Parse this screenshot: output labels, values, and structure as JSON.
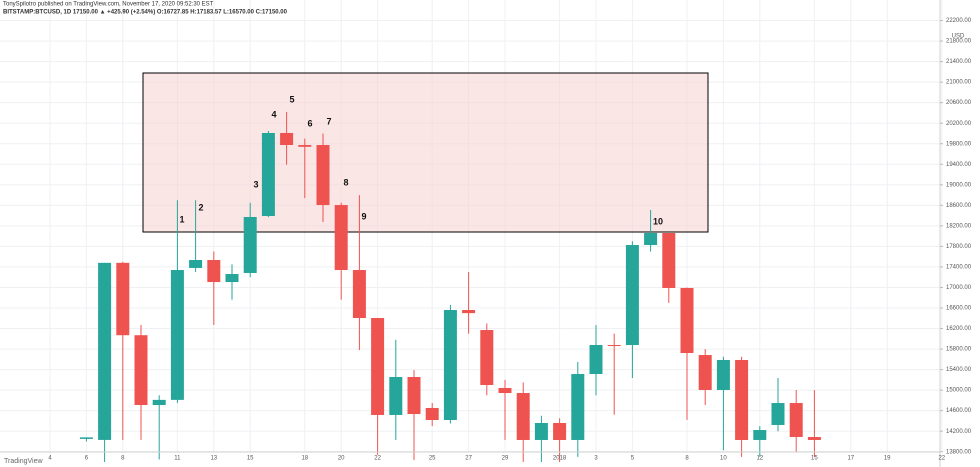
{
  "header": {
    "author": "TonySpilotro published on TradingView.com, November 17, 2020 09:52:30 EST",
    "symbol": "BITSTAMP:BTCUSD, 1D 17150.00 ▲ +425.90 (+2.54%) O:16727.85 H:17183.57 L:16570.00 C:17150.00"
  },
  "footer": {
    "brand": "TradingView"
  },
  "chart_data": {
    "type": "candlestick",
    "currency": "USD",
    "categories": [
      "4",
      null,
      "6",
      null,
      "8",
      null,
      null,
      "11",
      null,
      "13",
      null,
      "15",
      null,
      null,
      "18",
      null,
      "20",
      null,
      "22",
      null,
      null,
      "25",
      null,
      "27",
      null,
      "29",
      null,
      null,
      "2018",
      null,
      "3",
      null,
      "5",
      null,
      null,
      "8",
      null,
      "10",
      null,
      "12",
      null,
      null,
      "15",
      null,
      "17",
      null,
      "19",
      null,
      null,
      "22"
    ],
    "open": [
      null,
      null,
      14050,
      14030,
      17480,
      16070,
      14710,
      14810,
      17380,
      17535,
      17106,
      17282,
      18392,
      20009,
      19775,
      19775,
      18606,
      17340,
      16405,
      14516,
      15256,
      14652,
      14418,
      16561,
      16171,
      15042,
      14944,
      14029,
      14360,
      14029,
      15314,
      15879,
      15879,
      17827,
      18061,
      16990,
      15684,
      15003,
      15587,
      14029,
      14321,
      14749,
      14087,
      null,
      null,
      null,
      null,
      null,
      null,
      null
    ],
    "high": [
      null,
      null,
      14080,
      17480,
      17500,
      16270,
      14900,
      18700,
      18700,
      17700,
      17450,
      18650,
      20050,
      20420,
      19900,
      20000,
      18650,
      18800,
      16405,
      15980,
      15390,
      14750,
      16660,
      17300,
      16300,
      15200,
      15150,
      14500,
      14450,
      15550,
      16270,
      16100,
      17900,
      18510,
      18061,
      17000,
      15800,
      15650,
      15650,
      14300,
      15236,
      15003,
      15000,
      null,
      null,
      null,
      null,
      null,
      null,
      null
    ],
    "low": [
      null,
      null,
      14000,
      13600,
      14030,
      14030,
      13650,
      14750,
      17300,
      16270,
      16760,
      17200,
      18370,
      19390,
      18740,
      18275,
      16760,
      15780,
      13740,
      14030,
      13640,
      14300,
      14350,
      16100,
      14900,
      14030,
      13600,
      13600,
      13600,
      13700,
      14900,
      14520,
      15236,
      17700,
      16700,
      14420,
      14710,
      13830,
      13700,
      13700,
      14200,
      13800,
      13700,
      null,
      null,
      null,
      null,
      null,
      null,
      null
    ],
    "close": [
      null,
      null,
      14080,
      17480,
      16070,
      14710,
      14810,
      17340,
      17535,
      17106,
      17262,
      18373,
      20009,
      19775,
      19740,
      18606,
      17340,
      16405,
      14516,
      15256,
      14535,
      14418,
      16561,
      16500,
      15100,
      14944,
      14029,
      14360,
      14029,
      15314,
      15879,
      15870,
      17827,
      18061,
      16990,
      15723,
      15003,
      15587,
      14029,
      14223,
      14749,
      14087,
      14029,
      null,
      null,
      null,
      null,
      null,
      null,
      null
    ],
    "up_color": "#26a69a",
    "down_color": "#ef5350",
    "annotations": [
      "1",
      "2",
      "3",
      "4",
      "5",
      "6",
      "7",
      "8",
      "9",
      "10"
    ],
    "ylim": [
      13600,
      22600
    ],
    "yticks": [
      {
        "value": 13800,
        "label": "13800.00"
      },
      {
        "value": 14200,
        "label": "14200.00"
      },
      {
        "value": 14600,
        "label": "14600.00"
      },
      {
        "value": 15000,
        "label": "15000.00"
      },
      {
        "value": 15400,
        "label": "15400.00"
      },
      {
        "value": 15800,
        "label": "15800.00"
      },
      {
        "value": 16200,
        "label": "16200.00"
      },
      {
        "value": 16600,
        "label": "16600.00"
      },
      {
        "value": 17000,
        "label": "17000.00"
      },
      {
        "value": 17400,
        "label": "17400.00"
      },
      {
        "value": 17800,
        "label": "17800.00"
      },
      {
        "value": 18200,
        "label": "18200.00"
      },
      {
        "value": 18600,
        "label": "18600.00"
      },
      {
        "value": 19000,
        "label": "19000.00"
      },
      {
        "value": 19400,
        "label": "19400.00"
      },
      {
        "value": 19800,
        "label": "19800.00"
      },
      {
        "value": 20200,
        "label": "20200.00"
      },
      {
        "value": 20600,
        "label": "20600.00"
      },
      {
        "value": 21000,
        "label": "21000.00"
      },
      {
        "value": 21400,
        "label": "21400.00"
      },
      {
        "value": 21800,
        "label": "21800.00"
      },
      {
        "value": 22200,
        "label": "22200.00"
      }
    ],
    "grid": true
  }
}
